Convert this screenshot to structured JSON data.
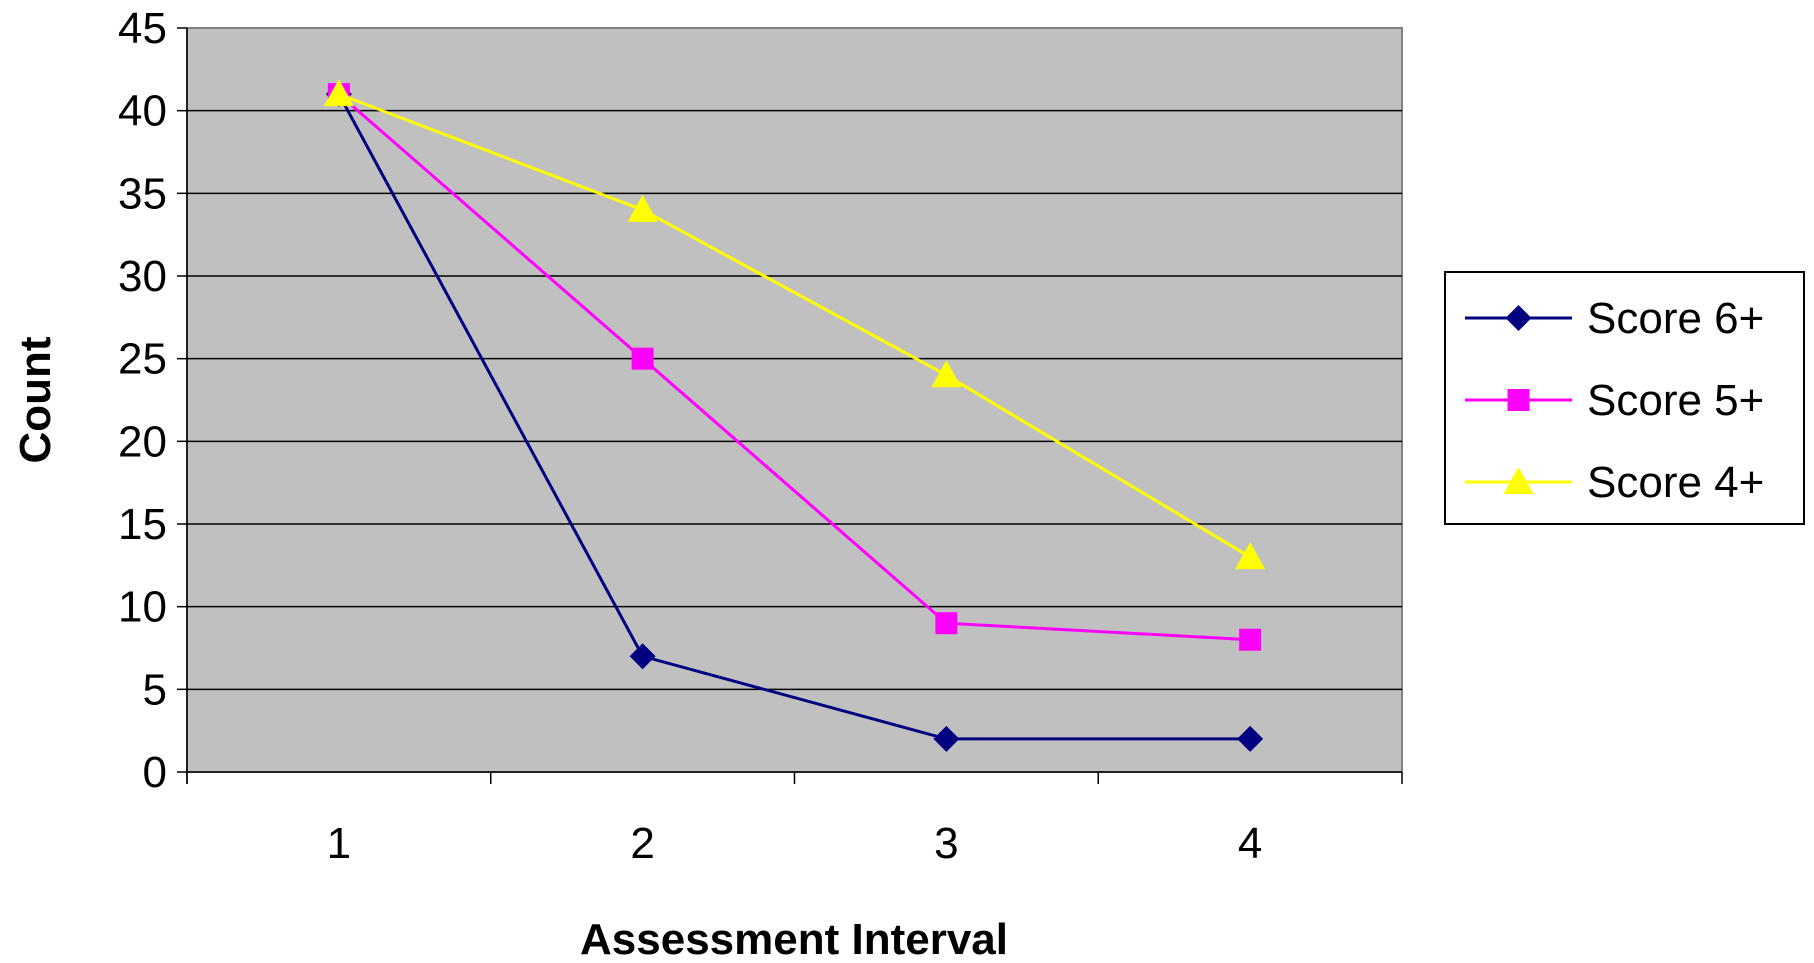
{
  "chart_data": {
    "type": "line",
    "xlabel": "Assessment Interval",
    "ylabel": "Count",
    "categories": [
      "1",
      "2",
      "3",
      "4"
    ],
    "ylim": [
      0,
      45
    ],
    "yticks": [
      0,
      5,
      10,
      15,
      20,
      25,
      30,
      35,
      40,
      45
    ],
    "grid": true,
    "plot_background": "#C0C0C0",
    "legend_position": "right",
    "series": [
      {
        "name": "Score 6+",
        "values": [
          41,
          7,
          2,
          2
        ],
        "color": "#000080",
        "marker": "diamond"
      },
      {
        "name": "Score 5+",
        "values": [
          41,
          25,
          9,
          8
        ],
        "color": "#FF00FF",
        "marker": "square"
      },
      {
        "name": "Score 4+",
        "values": [
          41,
          34,
          24,
          13
        ],
        "color": "#FFFF00",
        "marker": "triangle"
      }
    ]
  }
}
